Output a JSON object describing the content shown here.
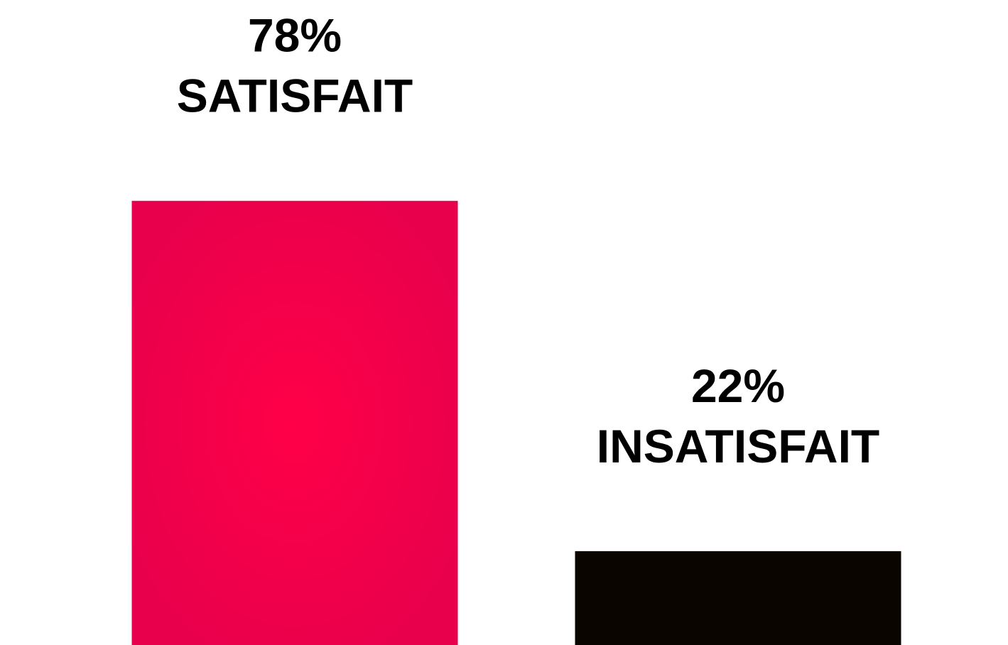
{
  "chart_data": {
    "type": "bar",
    "categories": [
      "SATISFAIT",
      "INSATISFAIT"
    ],
    "values": [
      78,
      22
    ],
    "value_labels": [
      "78%",
      "22%"
    ],
    "colors": [
      "#f2004b",
      "#0b0500"
    ],
    "ylim": [
      7,
      100
    ]
  }
}
